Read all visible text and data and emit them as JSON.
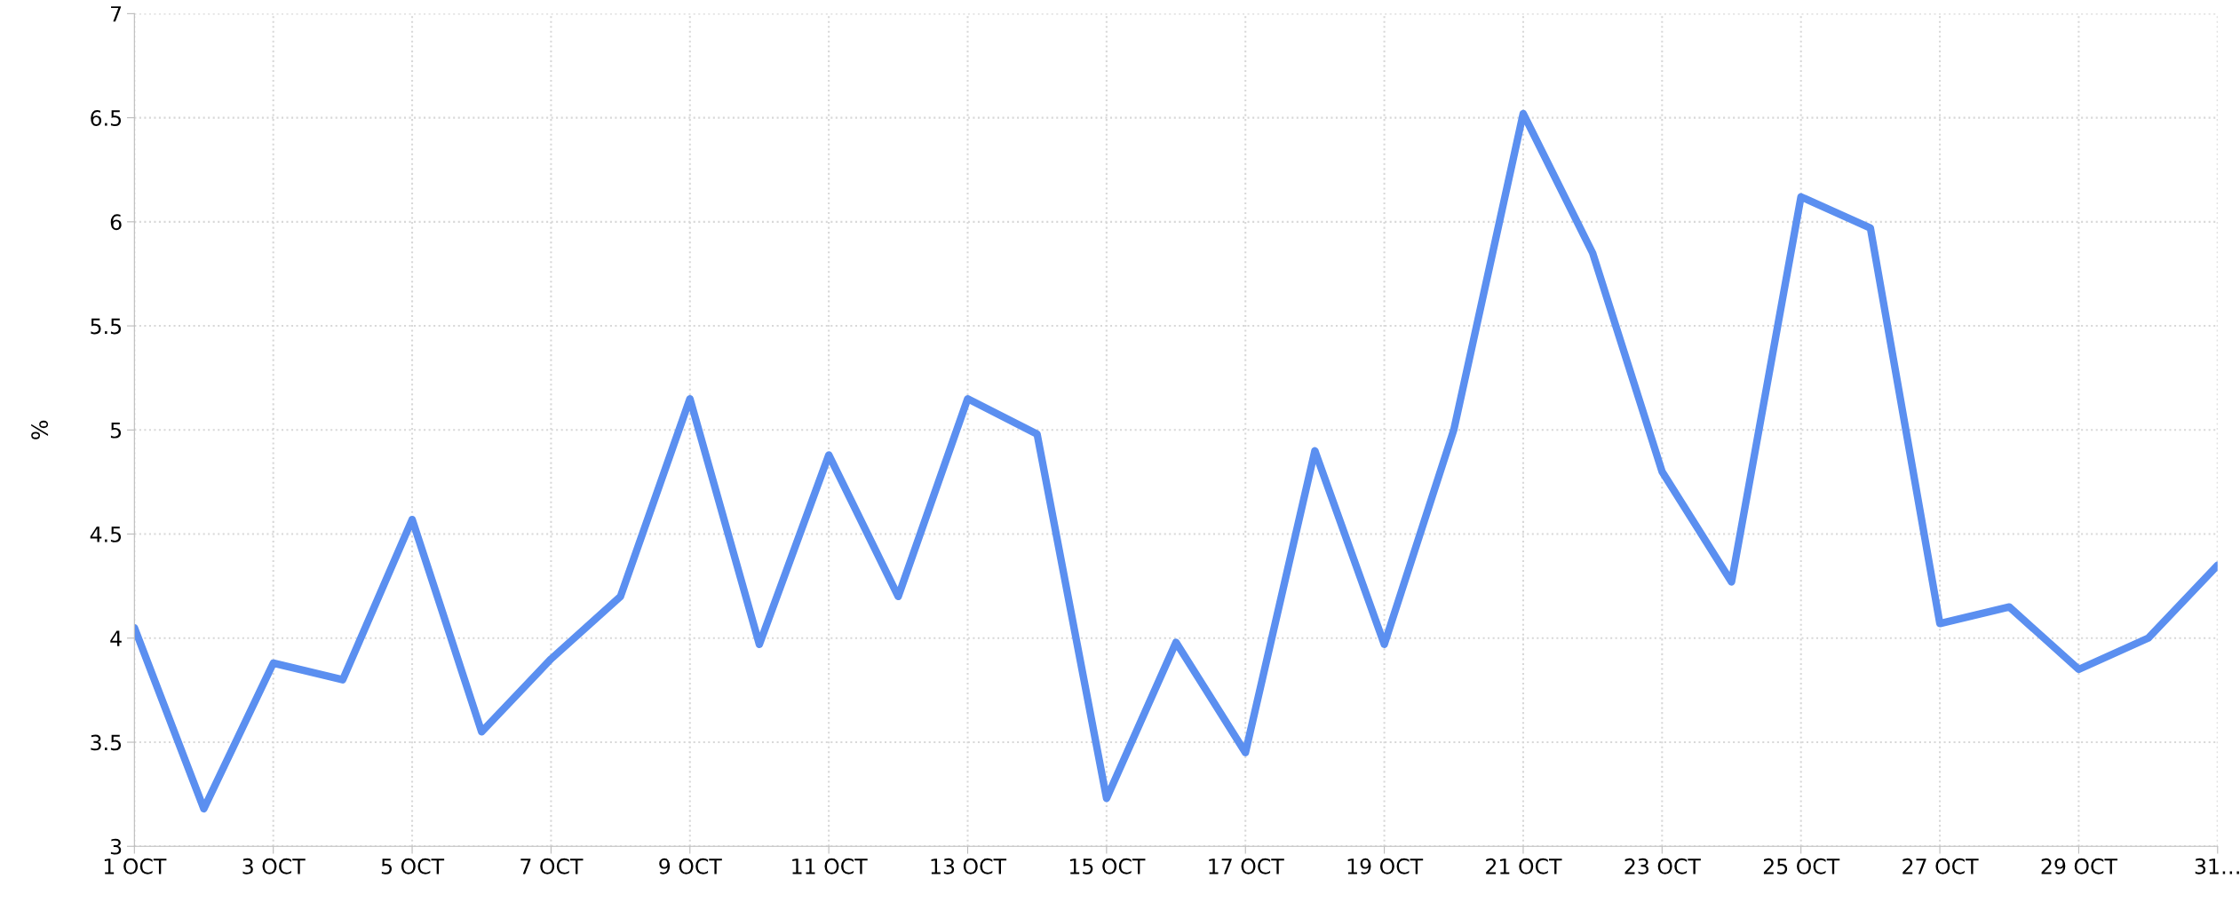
{
  "chart_data": {
    "type": "line",
    "ylabel": "%",
    "categories": [
      "1 OCT",
      null,
      "3 OCT",
      null,
      "5 OCT",
      null,
      "7 OCT",
      null,
      "9 OCT",
      null,
      "11 OCT",
      null,
      "13 OCT",
      null,
      "15 OCT",
      null,
      "17 OCT",
      null,
      "19 OCT",
      null,
      "21 OCT",
      null,
      "23 OCT",
      null,
      "25 OCT",
      null,
      "27 OCT",
      null,
      "29 OCT",
      null,
      "31…"
    ],
    "series": [
      {
        "color": "#5b8ff0",
        "values": [
          4.05,
          3.18,
          3.88,
          3.8,
          4.57,
          3.55,
          3.9,
          4.2,
          5.15,
          3.97,
          4.88,
          4.2,
          5.15,
          4.98,
          3.23,
          3.98,
          3.45,
          4.9,
          3.97,
          5.0,
          6.52,
          5.85,
          4.8,
          4.27,
          6.12,
          5.97,
          4.07,
          4.15,
          3.85,
          4.0,
          4.35
        ]
      }
    ],
    "ylim": [
      3,
      7
    ],
    "yticks": [
      3,
      3.5,
      4,
      4.5,
      5,
      5.5,
      6,
      6.5,
      7
    ],
    "grid": true,
    "marker": "none",
    "line_style": "solid",
    "legend": false
  }
}
